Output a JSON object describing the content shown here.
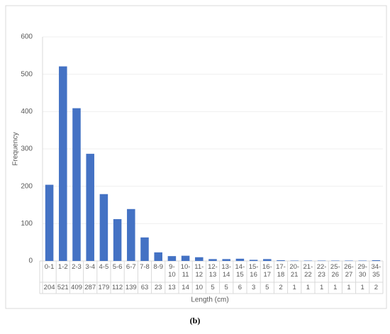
{
  "chart_data": {
    "type": "bar",
    "xlabel": "Length (cm)",
    "ylabel": "Frequency",
    "categories": [
      "0-1",
      "1-2",
      "2-3",
      "3-4",
      "4-5",
      "5-6",
      "6-7",
      "7-8",
      "8-9",
      "9-10",
      "10-11",
      "11-12",
      "12-13",
      "13-14",
      "14-15",
      "15-16",
      "16-17",
      "17-18",
      "20-21",
      "21-22",
      "22-23",
      "25-26",
      "26-27",
      "29-30",
      "34-35"
    ],
    "values": [
      204,
      521,
      409,
      287,
      179,
      112,
      139,
      63,
      23,
      13,
      14,
      10,
      5,
      5,
      6,
      3,
      5,
      2,
      1,
      1,
      1,
      1,
      1,
      1,
      2
    ],
    "color": "#4472c4",
    "ylim": [
      0,
      600
    ],
    "yticks": [
      0,
      100,
      200,
      300,
      400,
      500,
      600
    ],
    "grid": true
  },
  "caption": "(b)"
}
